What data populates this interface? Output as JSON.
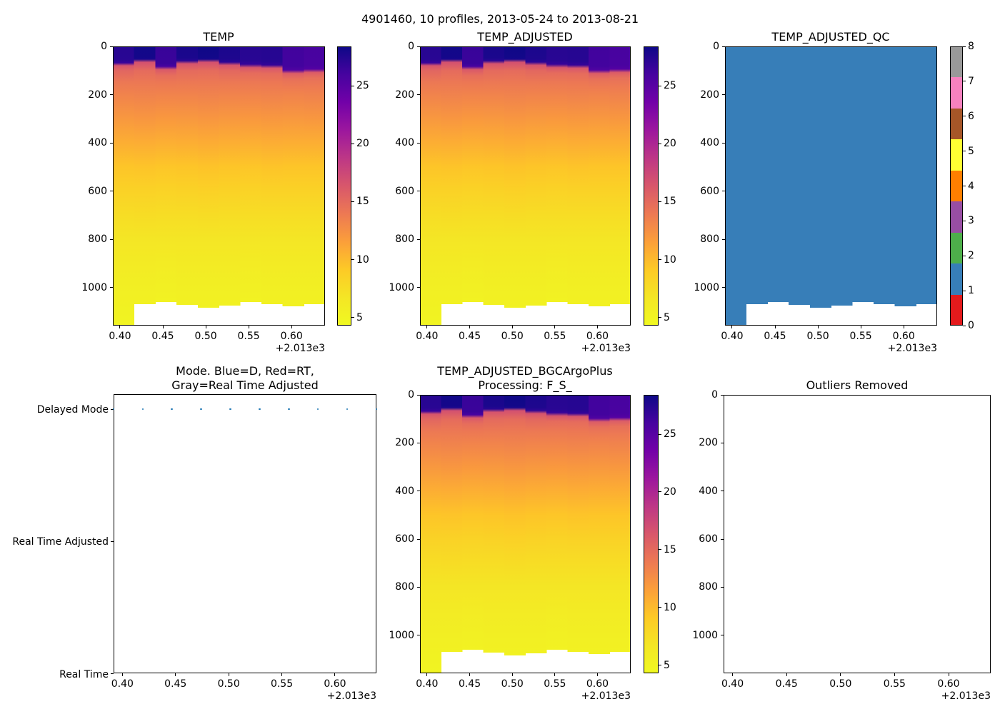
{
  "figure": {
    "suptitle": "4901460, 10 profiles, 2013-05-24 to 2013-08-21",
    "background": "#ffffff"
  },
  "chart_data": {
    "type": "heatmap",
    "x_axis": {
      "label_offset": "+2.013e3",
      "tick_labels": [
        "0.40",
        "0.45",
        "0.50",
        "0.55",
        "0.60"
      ],
      "tick_values": [
        2013.4,
        2013.45,
        2013.5,
        2013.55,
        2013.6
      ],
      "xlim": [
        2013.3917,
        2013.639
      ]
    },
    "y_axis": {
      "tick_values": [
        0,
        200,
        400,
        600,
        800,
        1000
      ],
      "ylim": [
        0,
        1158
      ]
    },
    "x_values": [
      2013.3917,
      2013.4192,
      2013.4466,
      2013.4741,
      2013.5016,
      2013.529,
      2013.5565,
      2013.5839,
      2013.6114,
      2013.639
    ],
    "profiles": {
      "count": 10,
      "bottom_depth": [
        1158,
        1069,
        1060,
        1072,
        1084,
        1075,
        1060,
        1069,
        1078,
        1069
      ],
      "temp_profiles": [
        [
          [
            0,
            27.3
          ],
          [
            55,
            27.2
          ],
          [
            68,
            26.5
          ],
          [
            80,
            16.5
          ],
          [
            100,
            15.3
          ],
          [
            150,
            14.0
          ],
          [
            200,
            13.3
          ],
          [
            300,
            12.0
          ],
          [
            400,
            10.7
          ],
          [
            500,
            9.4
          ],
          [
            600,
            8.4
          ],
          [
            700,
            7.5
          ],
          [
            800,
            6.7
          ],
          [
            900,
            6.05
          ],
          [
            1000,
            5.55
          ],
          [
            1100,
            5.15
          ],
          [
            1158,
            4.95
          ]
        ],
        [
          [
            0,
            28.2
          ],
          [
            45,
            28.1
          ],
          [
            53,
            27.8
          ],
          [
            66,
            16.8
          ],
          [
            100,
            14.9
          ],
          [
            150,
            14.0
          ],
          [
            200,
            13.35
          ],
          [
            300,
            12.1
          ],
          [
            400,
            10.75
          ],
          [
            500,
            9.45
          ],
          [
            600,
            8.45
          ],
          [
            700,
            7.55
          ],
          [
            800,
            6.75
          ],
          [
            900,
            6.1
          ],
          [
            1000,
            5.6
          ],
          [
            1100,
            5.2
          ],
          [
            1158,
            5.0
          ]
        ],
        [
          [
            0,
            26.6
          ],
          [
            70,
            26.5
          ],
          [
            83,
            25.8
          ],
          [
            96,
            16.2
          ],
          [
            120,
            14.8
          ],
          [
            150,
            14.05
          ],
          [
            200,
            13.3
          ],
          [
            300,
            11.95
          ],
          [
            400,
            10.65
          ],
          [
            500,
            9.35
          ],
          [
            600,
            8.35
          ],
          [
            700,
            7.45
          ],
          [
            800,
            6.65
          ],
          [
            900,
            6.0
          ],
          [
            1000,
            5.5
          ],
          [
            1100,
            5.1
          ],
          [
            1158,
            4.9
          ]
        ],
        [
          [
            0,
            27.9
          ],
          [
            48,
            27.8
          ],
          [
            59,
            27.2
          ],
          [
            72,
            16.6
          ],
          [
            100,
            15.0
          ],
          [
            150,
            14.0
          ],
          [
            200,
            13.3
          ],
          [
            300,
            12.0
          ],
          [
            400,
            10.7
          ],
          [
            500,
            9.4
          ],
          [
            600,
            8.4
          ],
          [
            700,
            7.5
          ],
          [
            800,
            6.7
          ],
          [
            900,
            6.05
          ],
          [
            1000,
            5.55
          ],
          [
            1100,
            5.15
          ],
          [
            1158,
            4.95
          ]
        ],
        [
          [
            0,
            28.3
          ],
          [
            45,
            28.2
          ],
          [
            53,
            27.9
          ],
          [
            66,
            16.8
          ],
          [
            100,
            14.9
          ],
          [
            150,
            14.0
          ],
          [
            200,
            13.4
          ],
          [
            300,
            12.1
          ],
          [
            400,
            10.8
          ],
          [
            500,
            9.5
          ],
          [
            600,
            8.5
          ],
          [
            700,
            7.55
          ],
          [
            800,
            6.75
          ],
          [
            900,
            6.1
          ],
          [
            1000,
            5.6
          ],
          [
            1100,
            5.2
          ],
          [
            1158,
            5.0
          ]
        ],
        [
          [
            0,
            27.8
          ],
          [
            52,
            27.7
          ],
          [
            65,
            27.0
          ],
          [
            78,
            16.6
          ],
          [
            100,
            15.2
          ],
          [
            150,
            14.0
          ],
          [
            200,
            13.3
          ],
          [
            300,
            12.0
          ],
          [
            400,
            10.7
          ],
          [
            500,
            9.4
          ],
          [
            600,
            8.4
          ],
          [
            700,
            7.5
          ],
          [
            800,
            6.7
          ],
          [
            900,
            6.05
          ],
          [
            1000,
            5.55
          ],
          [
            1100,
            5.15
          ],
          [
            1158,
            4.95
          ]
        ],
        [
          [
            0,
            27.3
          ],
          [
            60,
            27.2
          ],
          [
            74,
            26.6
          ],
          [
            88,
            16.4
          ],
          [
            110,
            14.9
          ],
          [
            150,
            14.0
          ],
          [
            200,
            13.3
          ],
          [
            300,
            11.95
          ],
          [
            400,
            10.65
          ],
          [
            500,
            9.35
          ],
          [
            600,
            8.35
          ],
          [
            700,
            7.45
          ],
          [
            800,
            6.65
          ],
          [
            900,
            6.0
          ],
          [
            1000,
            5.5
          ],
          [
            1100,
            5.1
          ],
          [
            1158,
            4.9
          ]
        ],
        [
          [
            0,
            27.4
          ],
          [
            62,
            27.3
          ],
          [
            77,
            26.7
          ],
          [
            90,
            16.4
          ],
          [
            112,
            14.9
          ],
          [
            150,
            14.05
          ],
          [
            200,
            13.35
          ],
          [
            300,
            12.05
          ],
          [
            400,
            10.75
          ],
          [
            500,
            9.45
          ],
          [
            600,
            8.45
          ],
          [
            700,
            7.5
          ],
          [
            800,
            6.7
          ],
          [
            900,
            6.05
          ],
          [
            1000,
            5.55
          ],
          [
            1100,
            5.15
          ],
          [
            1158,
            4.95
          ]
        ],
        [
          [
            0,
            26.2
          ],
          [
            82,
            26.1
          ],
          [
            98,
            25.4
          ],
          [
            112,
            16.0
          ],
          [
            135,
            14.6
          ],
          [
            170,
            13.8
          ],
          [
            200,
            13.3
          ],
          [
            300,
            12.0
          ],
          [
            400,
            10.7
          ],
          [
            500,
            9.4
          ],
          [
            600,
            8.4
          ],
          [
            700,
            7.5
          ],
          [
            800,
            6.7
          ],
          [
            900,
            6.05
          ],
          [
            1000,
            5.55
          ],
          [
            1100,
            5.15
          ],
          [
            1158,
            4.95
          ]
        ],
        [
          [
            0,
            25.9
          ],
          [
            78,
            25.8
          ],
          [
            94,
            25.2
          ],
          [
            108,
            16.0
          ],
          [
            130,
            14.6
          ],
          [
            170,
            13.8
          ],
          [
            200,
            13.35
          ],
          [
            300,
            12.05
          ],
          [
            400,
            10.7
          ],
          [
            500,
            9.4
          ],
          [
            600,
            8.4
          ],
          [
            700,
            7.5
          ],
          [
            800,
            6.7
          ],
          [
            900,
            6.05
          ],
          [
            1000,
            5.55
          ],
          [
            1100,
            5.15
          ],
          [
            1158,
            4.95
          ]
        ]
      ]
    },
    "temp_scale": {
      "vmin": 4.3,
      "vmax": 28.4,
      "ticks": [
        25,
        20,
        15,
        10,
        5
      ],
      "colormap": "plasma_r",
      "plasma_stops": [
        "#0d0887",
        "#46039f",
        "#7201a8",
        "#9c179e",
        "#bd3786",
        "#d8576b",
        "#ed7953",
        "#fb9f3a",
        "#fdca26",
        "#f4e625",
        "#f0f921"
      ]
    },
    "qc": {
      "fill_value": 1,
      "ticks": [
        0,
        1,
        2,
        3,
        4,
        5,
        6,
        7,
        8
      ],
      "colors": [
        "#e41a1c",
        "#377eb8",
        "#4daf4a",
        "#984ea3",
        "#ff7f00",
        "#ffff33",
        "#a65628",
        "#f781bf",
        "#999999"
      ]
    },
    "panels": [
      {
        "id": "temp",
        "type": "heatmap",
        "title": "TEMP"
      },
      {
        "id": "temp_adjusted",
        "type": "heatmap",
        "title": "TEMP_ADJUSTED"
      },
      {
        "id": "temp_adjusted_qc",
        "type": "qc_heatmap",
        "title": "TEMP_ADJUSTED_QC"
      },
      {
        "id": "mode",
        "type": "scatter",
        "title_line1": "Mode. Blue=D, Red=RT,",
        "title_line2": "Gray=Real Time Adjusted",
        "y_categories": [
          "Delayed Mode",
          "Real Time Adjusted",
          "Real Time"
        ],
        "point_category": "Delayed Mode",
        "dot_color": "#1f77b4"
      },
      {
        "id": "temp_bgc",
        "type": "heatmap",
        "title_line1": "TEMP_ADJUSTED_BGCArgoPlus",
        "title_line2": "Processing: F_S_"
      },
      {
        "id": "outliers",
        "type": "empty",
        "title": "Outliers Removed"
      }
    ]
  }
}
